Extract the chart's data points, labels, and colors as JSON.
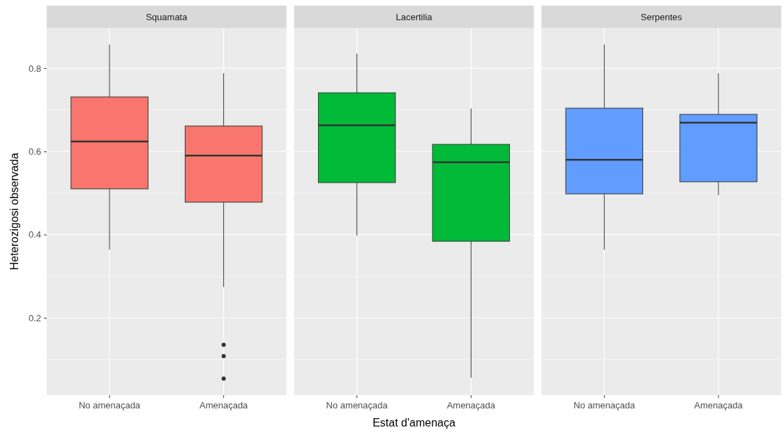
{
  "chart_data": [
    {
      "type": "box",
      "title": "Squamata",
      "ylabel": "Heterozigosi observada",
      "categories": [
        "No amenaçada",
        "Amenaçada"
      ],
      "color": "#f8766d",
      "ylim": [
        0.014,
        0.897
      ],
      "yticks": [
        0.2,
        0.4,
        0.6,
        0.8
      ],
      "grid": true,
      "boxes": [
        {
          "low": 0.364,
          "q1": 0.51,
          "median": 0.624,
          "q3": 0.731,
          "high": 0.857
        },
        {
          "low": 0.274,
          "q1": 0.478,
          "median": 0.59,
          "q3": 0.661,
          "high": 0.788,
          "outliers": [
            0.135,
            0.108,
            0.054
          ]
        }
      ]
    },
    {
      "type": "box",
      "title": "Lacertilia",
      "xlabel": "Estat d'amenaça",
      "categories": [
        "No amenaçada",
        "Amenaçada"
      ],
      "color": "#00ba38",
      "ylim": [
        0.014,
        0.897
      ],
      "yticks": [
        0.2,
        0.4,
        0.6,
        0.8
      ],
      "grid": true,
      "tick_labels": "x",
      "boxes": [
        {
          "low": 0.398,
          "q1": 0.525,
          "median": 0.663,
          "q3": 0.741,
          "high": 0.835
        },
        {
          "low": 0.056,
          "q1": 0.384,
          "median": 0.574,
          "q3": 0.617,
          "high": 0.703
        }
      ]
    },
    {
      "type": "box",
      "title": "Serpentes",
      "categories": [
        "No amenaçada",
        "Amenaçada"
      ],
      "color": "#619cff",
      "ylim": [
        0.014,
        0.897
      ],
      "yticks": [
        0.2,
        0.4,
        0.6,
        0.8
      ],
      "grid": true,
      "tick_labels": "x",
      "boxes": [
        {
          "low": 0.364,
          "q1": 0.498,
          "median": 0.58,
          "q3": 0.704,
          "high": 0.857
        },
        {
          "low": 0.495,
          "q1": 0.527,
          "median": 0.669,
          "q3": 0.689,
          "high": 0.788
        }
      ]
    }
  ]
}
